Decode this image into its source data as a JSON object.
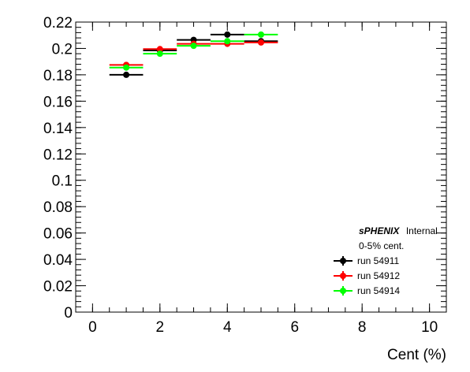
{
  "chart_data": {
    "type": "scatter",
    "xlabel": "Cent (%)",
    "ylabel": "",
    "xlim": [
      -0.5,
      10.5
    ],
    "ylim": [
      0,
      0.22
    ],
    "xticks": [
      "0",
      "2",
      "4",
      "6",
      "8",
      "10"
    ],
    "yticks": [
      "0",
      "0.02",
      "0.04",
      "0.06",
      "0.08",
      "0.1",
      "0.12",
      "0.14",
      "0.16",
      "0.18",
      "0.2",
      "0.22"
    ],
    "legend_placement": "bottom-right",
    "annotations": {
      "brand": "sPHENIX",
      "status": "Internal",
      "cent_label": "0-5% cent."
    },
    "series": [
      {
        "name": "run 54911",
        "color": "#000000",
        "x": [
          1,
          2,
          3,
          4,
          5
        ],
        "x_err": [
          0.5,
          0.5,
          0.5,
          0.5,
          0.5
        ],
        "y": [
          0.18,
          0.1985,
          0.2065,
          0.2105,
          0.2055
        ]
      },
      {
        "name": "run 54912",
        "color": "#ff0000",
        "x": [
          1,
          2,
          3,
          4,
          5
        ],
        "x_err": [
          0.5,
          0.5,
          0.5,
          0.5,
          0.5
        ],
        "y": [
          0.1875,
          0.1995,
          0.2035,
          0.2035,
          0.2045
        ]
      },
      {
        "name": "run 54914",
        "color": "#00ff00",
        "x": [
          1,
          2,
          3,
          4,
          5
        ],
        "x_err": [
          0.5,
          0.5,
          0.5,
          0.5,
          0.5
        ],
        "y": [
          0.1855,
          0.196,
          0.202,
          0.2055,
          0.2105
        ]
      }
    ]
  }
}
